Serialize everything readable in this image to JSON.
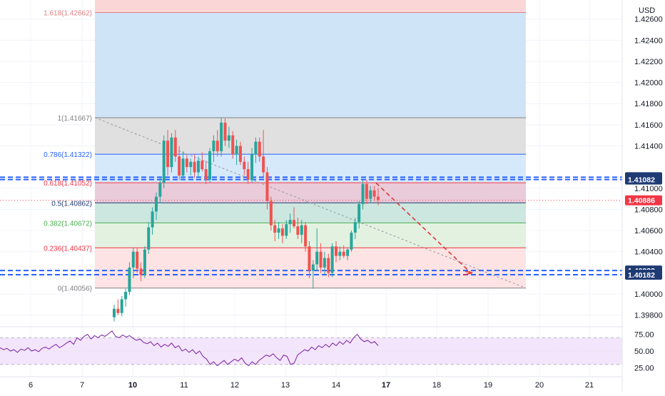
{
  "currency": "USD",
  "chart_data": {
    "type": "candlestick",
    "price_axis": {
      "ticks": [
        "1.42600",
        "1.42400",
        "1.42200",
        "1.42000",
        "1.41800",
        "1.41600",
        "1.41400",
        "1.41000",
        "1.40800",
        "1.40600",
        "1.40400",
        "1.40000",
        "1.39800"
      ],
      "range": [
        1.3971,
        1.4278
      ]
    },
    "time_axis": {
      "ticks": [
        "6",
        "7",
        "10",
        "11",
        "12",
        "13",
        "14",
        "17",
        "18",
        "19",
        "20",
        "21"
      ],
      "bold_ticks": [
        "10",
        "17"
      ]
    },
    "current_price": "1.40886",
    "price_tags": [
      {
        "label": "1.41104",
        "value": 1.41104,
        "color": "#1f3b73"
      },
      {
        "label": "1.41082",
        "value": 1.41082,
        "color": "#1f3b73"
      },
      {
        "label": "1.40886",
        "value": 1.40886,
        "color": "#f23645"
      },
      {
        "label": "1.40222",
        "value": 1.40222,
        "color": "#1f3b73"
      },
      {
        "label": "1.40182",
        "value": 1.40182,
        "color": "#1f3b73"
      }
    ],
    "fib_levels": [
      {
        "label": "1.618(1.42662)",
        "value": 1.42662,
        "color": "#e08080",
        "fill": "#fbd6d6"
      },
      {
        "label": "1(1.41667)",
        "value": 1.41667,
        "color": "#808080",
        "fill": "#d0e4f8"
      },
      {
        "label": "0.786(1.41322)",
        "value": 1.41322,
        "color": "#2962ff",
        "fill": "#e0e0e0"
      },
      {
        "label": "0.618(1.41052)",
        "value": 1.41052,
        "color": "#f23645",
        "fill": "#d6e9fb"
      },
      {
        "label": "0.5(1.40862)",
        "value": 1.40862,
        "color": "#1f3b73",
        "fill": "#e9cbd9"
      },
      {
        "label": "0.382(1.40672)",
        "value": 1.40672,
        "color": "#4caf50",
        "fill": "#cce6e0"
      },
      {
        "label": "0.236(1.40437)",
        "value": 1.40437,
        "color": "#f23645",
        "fill": "#e3f1e1"
      },
      {
        "label": "0(1.40056)",
        "value": 1.40056,
        "color": "#808080",
        "fill": "#fde3e3"
      }
    ],
    "candles": [
      {
        "o": 1.3978,
        "h": 1.399,
        "l": 1.3974,
        "c": 1.3986
      },
      {
        "o": 1.3986,
        "h": 1.3995,
        "l": 1.398,
        "c": 1.3982
      },
      {
        "o": 1.3982,
        "h": 1.3998,
        "l": 1.3979,
        "c": 1.3995
      },
      {
        "o": 1.3995,
        "h": 1.4005,
        "l": 1.3988,
        "c": 1.4002
      },
      {
        "o": 1.4002,
        "h": 1.403,
        "l": 1.3999,
        "c": 1.4025
      },
      {
        "o": 1.4025,
        "h": 1.4044,
        "l": 1.4015,
        "c": 1.404
      },
      {
        "o": 1.404,
        "h": 1.4043,
        "l": 1.402,
        "c": 1.4024
      },
      {
        "o": 1.4024,
        "h": 1.403,
        "l": 1.4012,
        "c": 1.4018
      },
      {
        "o": 1.4018,
        "h": 1.4045,
        "l": 1.4015,
        "c": 1.4042
      },
      {
        "o": 1.4042,
        "h": 1.4068,
        "l": 1.4038,
        "c": 1.4063
      },
      {
        "o": 1.4063,
        "h": 1.4082,
        "l": 1.4056,
        "c": 1.4078
      },
      {
        "o": 1.4078,
        "h": 1.4096,
        "l": 1.407,
        "c": 1.4092
      },
      {
        "o": 1.4092,
        "h": 1.411,
        "l": 1.4086,
        "c": 1.4105
      },
      {
        "o": 1.4105,
        "h": 1.415,
        "l": 1.41,
        "c": 1.4145
      },
      {
        "o": 1.4145,
        "h": 1.4155,
        "l": 1.4112,
        "c": 1.412
      },
      {
        "o": 1.412,
        "h": 1.4152,
        "l": 1.4115,
        "c": 1.4148
      },
      {
        "o": 1.4148,
        "h": 1.4155,
        "l": 1.4125,
        "c": 1.413
      },
      {
        "o": 1.413,
        "h": 1.414,
        "l": 1.4108,
        "c": 1.4112
      },
      {
        "o": 1.4112,
        "h": 1.4135,
        "l": 1.4108,
        "c": 1.4128
      },
      {
        "o": 1.4128,
        "h": 1.4132,
        "l": 1.4115,
        "c": 1.412
      },
      {
        "o": 1.412,
        "h": 1.4128,
        "l": 1.4112,
        "c": 1.4125
      },
      {
        "o": 1.4125,
        "h": 1.4132,
        "l": 1.411,
        "c": 1.4115
      },
      {
        "o": 1.4115,
        "h": 1.413,
        "l": 1.411,
        "c": 1.4126
      },
      {
        "o": 1.4126,
        "h": 1.4134,
        "l": 1.4116,
        "c": 1.4118
      },
      {
        "o": 1.4118,
        "h": 1.4126,
        "l": 1.4104,
        "c": 1.4108
      },
      {
        "o": 1.4108,
        "h": 1.4138,
        "l": 1.4105,
        "c": 1.4135
      },
      {
        "o": 1.4135,
        "h": 1.415,
        "l": 1.4125,
        "c": 1.4145
      },
      {
        "o": 1.4145,
        "h": 1.4155,
        "l": 1.413,
        "c": 1.4135
      },
      {
        "o": 1.4135,
        "h": 1.4167,
        "l": 1.413,
        "c": 1.4162
      },
      {
        "o": 1.4162,
        "h": 1.4166,
        "l": 1.414,
        "c": 1.4145
      },
      {
        "o": 1.4145,
        "h": 1.4158,
        "l": 1.4138,
        "c": 1.415
      },
      {
        "o": 1.415,
        "h": 1.4154,
        "l": 1.4128,
        "c": 1.4132
      },
      {
        "o": 1.4132,
        "h": 1.4146,
        "l": 1.4122,
        "c": 1.414
      },
      {
        "o": 1.414,
        "h": 1.4144,
        "l": 1.4122,
        "c": 1.4125
      },
      {
        "o": 1.4125,
        "h": 1.413,
        "l": 1.4112,
        "c": 1.4118
      },
      {
        "o": 1.4118,
        "h": 1.4125,
        "l": 1.4104,
        "c": 1.4108
      },
      {
        "o": 1.4108,
        "h": 1.4138,
        "l": 1.4105,
        "c": 1.4132
      },
      {
        "o": 1.4132,
        "h": 1.4148,
        "l": 1.4124,
        "c": 1.4144
      },
      {
        "o": 1.4144,
        "h": 1.4148,
        "l": 1.4125,
        "c": 1.413
      },
      {
        "o": 1.413,
        "h": 1.4155,
        "l": 1.411,
        "c": 1.4115
      },
      {
        "o": 1.4115,
        "h": 1.412,
        "l": 1.408,
        "c": 1.4088
      },
      {
        "o": 1.4088,
        "h": 1.4092,
        "l": 1.406,
        "c": 1.4065
      },
      {
        "o": 1.4065,
        "h": 1.407,
        "l": 1.405,
        "c": 1.4058
      },
      {
        "o": 1.4058,
        "h": 1.4068,
        "l": 1.4052,
        "c": 1.4062
      },
      {
        "o": 1.4062,
        "h": 1.4066,
        "l": 1.4048,
        "c": 1.4055
      },
      {
        "o": 1.4055,
        "h": 1.407,
        "l": 1.4052,
        "c": 1.4066
      },
      {
        "o": 1.4066,
        "h": 1.4076,
        "l": 1.4058,
        "c": 1.407
      },
      {
        "o": 1.407,
        "h": 1.4082,
        "l": 1.4062,
        "c": 1.4064
      },
      {
        "o": 1.4064,
        "h": 1.4072,
        "l": 1.4052,
        "c": 1.4056
      },
      {
        "o": 1.4056,
        "h": 1.407,
        "l": 1.4048,
        "c": 1.4065
      },
      {
        "o": 1.4065,
        "h": 1.4068,
        "l": 1.404,
        "c": 1.4045
      },
      {
        "o": 1.4045,
        "h": 1.405,
        "l": 1.4015,
        "c": 1.4022
      },
      {
        "o": 1.4022,
        "h": 1.4032,
        "l": 1.4005,
        "c": 1.4028
      },
      {
        "o": 1.4028,
        "h": 1.4062,
        "l": 1.4022,
        "c": 1.404
      },
      {
        "o": 1.404,
        "h": 1.4048,
        "l": 1.402,
        "c": 1.4025
      },
      {
        "o": 1.4025,
        "h": 1.404,
        "l": 1.4018,
        "c": 1.4034
      },
      {
        "o": 1.4034,
        "h": 1.4038,
        "l": 1.4016,
        "c": 1.402
      },
      {
        "o": 1.402,
        "h": 1.4048,
        "l": 1.4016,
        "c": 1.4045
      },
      {
        "o": 1.4045,
        "h": 1.405,
        "l": 1.403,
        "c": 1.4036
      },
      {
        "o": 1.4036,
        "h": 1.4045,
        "l": 1.4032,
        "c": 1.404
      },
      {
        "o": 1.404,
        "h": 1.4046,
        "l": 1.4034,
        "c": 1.4036
      },
      {
        "o": 1.4036,
        "h": 1.4044,
        "l": 1.4032,
        "c": 1.4042
      },
      {
        "o": 1.4042,
        "h": 1.406,
        "l": 1.404,
        "c": 1.4058
      },
      {
        "o": 1.4058,
        "h": 1.4072,
        "l": 1.4052,
        "c": 1.4068
      },
      {
        "o": 1.4068,
        "h": 1.4088,
        "l": 1.4062,
        "c": 1.4085
      },
      {
        "o": 1.4085,
        "h": 1.4108,
        "l": 1.408,
        "c": 1.4104
      },
      {
        "o": 1.4104,
        "h": 1.4108,
        "l": 1.4085,
        "c": 1.409
      },
      {
        "o": 1.409,
        "h": 1.4102,
        "l": 1.4086,
        "c": 1.4098
      },
      {
        "o": 1.4098,
        "h": 1.4102,
        "l": 1.4088,
        "c": 1.4092
      },
      {
        "o": 1.4092,
        "h": 1.41,
        "l": 1.4084,
        "c": 1.4089
      }
    ],
    "projection": {
      "from": 1.4105,
      "to": 1.402
    },
    "diagonal": {
      "from": 1.41667,
      "to": 1.40056
    },
    "rsi": {
      "ticks": [
        "75.00",
        "50.00",
        "25.00"
      ],
      "range": [
        18,
        82
      ],
      "band": [
        70,
        30
      ],
      "values": [
        55,
        52,
        54,
        50,
        52,
        48,
        53,
        51,
        55,
        50,
        52,
        49,
        54,
        56,
        53,
        57,
        60,
        55,
        58,
        62,
        65,
        60,
        70,
        66,
        72,
        75,
        68,
        73,
        70,
        74,
        72,
        76,
        80,
        72,
        70,
        74,
        71,
        73,
        69,
        66,
        68,
        63,
        61,
        64,
        58,
        62,
        56,
        60,
        57,
        62,
        55,
        58,
        50,
        53,
        48,
        52,
        46,
        50,
        42,
        38,
        30,
        34,
        28,
        32,
        36,
        30,
        34,
        38,
        35,
        40,
        32,
        28,
        34,
        30,
        36,
        40,
        44,
        42,
        46,
        40,
        36,
        44,
        42,
        30,
        32,
        44,
        48,
        52,
        50,
        56,
        52,
        58,
        55,
        60,
        56,
        62,
        58,
        64,
        60,
        66,
        62,
        70,
        75,
        68,
        64,
        66,
        62,
        64,
        58
      ]
    }
  }
}
